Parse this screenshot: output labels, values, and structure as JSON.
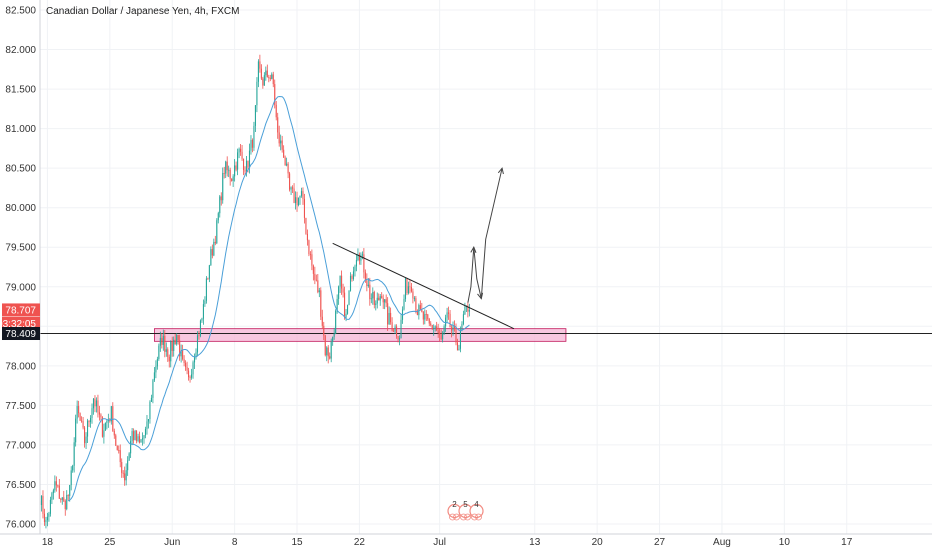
{
  "chart_data": {
    "type": "candlestick",
    "title": "Canadian Dollar / Japanese Yen, 4h, FXCM",
    "ylim": [
      76.0,
      82.5
    ],
    "y_ticks": [
      "82.500",
      "82.000",
      "81.500",
      "81.000",
      "80.500",
      "80.000",
      "79.500",
      "79.000",
      "78.500",
      "78.000",
      "77.500",
      "77.000",
      "76.500",
      "76.000"
    ],
    "x_ticks": [
      {
        "label": "18",
        "idx": 5
      },
      {
        "label": "25",
        "idx": 47
      },
      {
        "label": "Jun",
        "idx": 89
      },
      {
        "label": "8",
        "idx": 131
      },
      {
        "label": "15",
        "idx": 173
      },
      {
        "label": "22",
        "idx": 215
      },
      {
        "label": "Jul",
        "idx": 269
      },
      {
        "label": "13",
        "idx": 333
      },
      {
        "label": "20",
        "idx": 375
      },
      {
        "label": "27",
        "idx": 417
      },
      {
        "label": "Aug",
        "idx": 459
      },
      {
        "label": "10",
        "idx": 501
      },
      {
        "label": "17",
        "idx": 543
      }
    ],
    "anchors": [
      [
        0,
        76.35
      ],
      [
        4,
        76.0
      ],
      [
        10,
        76.5
      ],
      [
        16,
        76.25
      ],
      [
        20,
        76.4
      ],
      [
        25,
        77.45
      ],
      [
        30,
        77.05
      ],
      [
        36,
        77.6
      ],
      [
        42,
        77.2
      ],
      [
        48,
        77.4
      ],
      [
        52,
        76.9
      ],
      [
        57,
        76.6
      ],
      [
        62,
        77.15
      ],
      [
        67,
        77.0
      ],
      [
        72,
        77.2
      ],
      [
        77,
        77.95
      ],
      [
        82,
        78.35
      ],
      [
        87,
        78.15
      ],
      [
        92,
        78.4
      ],
      [
        96,
        78.0
      ],
      [
        100,
        77.8
      ],
      [
        104,
        78.2
      ],
      [
        109,
        78.6
      ],
      [
        114,
        79.3
      ],
      [
        119,
        79.75
      ],
      [
        124,
        80.5
      ],
      [
        129,
        80.4
      ],
      [
        134,
        80.7
      ],
      [
        139,
        80.5
      ],
      [
        144,
        80.95
      ],
      [
        147,
        81.75
      ],
      [
        150,
        81.6
      ],
      [
        154,
        81.7
      ],
      [
        157,
        81.55
      ],
      [
        160,
        80.9
      ],
      [
        164,
        80.7
      ],
      [
        168,
        80.2
      ],
      [
        172,
        80.1
      ],
      [
        176,
        80.15
      ],
      [
        180,
        79.6
      ],
      [
        184,
        79.15
      ],
      [
        188,
        78.9
      ],
      [
        192,
        78.2
      ],
      [
        195,
        78.15
      ],
      [
        198,
        78.5
      ],
      [
        202,
        79.05
      ],
      [
        206,
        78.6
      ],
      [
        210,
        79.2
      ],
      [
        214,
        79.5
      ],
      [
        218,
        79.25
      ],
      [
        222,
        78.9
      ],
      [
        226,
        78.75
      ],
      [
        230,
        78.95
      ],
      [
        234,
        78.6
      ],
      [
        238,
        78.5
      ],
      [
        242,
        78.4
      ],
      [
        246,
        79.0
      ],
      [
        250,
        79.05
      ],
      [
        254,
        78.7
      ],
      [
        258,
        78.6
      ],
      [
        262,
        78.5
      ],
      [
        266,
        78.5
      ],
      [
        270,
        78.3
      ],
      [
        274,
        78.6
      ],
      [
        278,
        78.4
      ],
      [
        282,
        78.25
      ],
      [
        285,
        78.6
      ],
      [
        288,
        78.75
      ],
      [
        289,
        78.707
      ]
    ],
    "last_index": 289,
    "ma_period": 20,
    "current_price": "78.707",
    "countdown": "03:32:05",
    "crosshair_price": "78.409",
    "horizontal_line": 78.409,
    "support_zone": {
      "from_idx": 77,
      "to_idx": 354,
      "top": 78.47,
      "bottom": 78.31
    },
    "trendline": [
      [
        197,
        79.55
      ],
      [
        319,
        78.47
      ]
    ],
    "projection": [
      [
        288,
        78.8
      ],
      [
        290,
        79.0
      ],
      [
        292,
        79.5
      ],
      [
        294,
        79.1
      ],
      [
        297,
        78.85
      ],
      [
        300,
        79.6
      ],
      [
        311,
        80.5
      ]
    ],
    "markers": [
      "2",
      "5",
      "4"
    ],
    "colors": {
      "up": "#26a69a",
      "down": "#ef5350",
      "ma": "#4a9fd8",
      "zone_fill": "#f4b6d6",
      "zone_stroke": "#c2185b",
      "price_tag": "#ef5350",
      "dark_tag": "#131722"
    }
  }
}
